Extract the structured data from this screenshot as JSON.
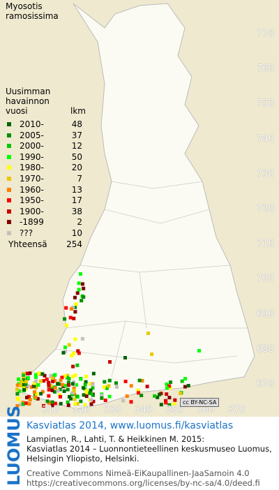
{
  "species": "Myosotis ramosissima",
  "legend": {
    "heading": [
      "Uusimman",
      "havainnon",
      "vuosi"
    ],
    "count_heading": "lkm",
    "rows": [
      {
        "label": "2010-",
        "count": 48,
        "color": "#006400"
      },
      {
        "label": "2005-",
        "count": 37,
        "color": "#009000"
      },
      {
        "label": "2000-",
        "count": 12,
        "color": "#00c800"
      },
      {
        "label": "1990-",
        "count": 50,
        "color": "#00ff00"
      },
      {
        "label": "1980-",
        "count": 20,
        "color": "#ffff00"
      },
      {
        "label": "1970-",
        "count": 7,
        "color": "#e8c800"
      },
      {
        "label": "1960-",
        "count": 13,
        "color": "#ff8000"
      },
      {
        "label": "1950-",
        "count": 17,
        "color": "#ff0000"
      },
      {
        "label": "1900-",
        "count": 38,
        "color": "#c80000"
      },
      {
        "label": "-1899",
        "count": 2,
        "color": "#800000"
      },
      {
        "label": "???",
        "count": 10,
        "color": "#c0c0c0"
      }
    ],
    "total_label": "Yhteensä",
    "total": 254
  },
  "northing_labels": [
    770,
    760,
    750,
    740,
    730,
    720,
    710,
    700,
    690,
    680,
    670
  ],
  "easting_labels": [
    310,
    320,
    330,
    340,
    350,
    360,
    370
  ],
  "license_badge": [
    "cc",
    "BY-NC-SA"
  ],
  "logo": "LUOMUS",
  "footer": {
    "link": "Kasviatlas 2014, www.luomus.fi/kasviatlas",
    "citation": [
      "Lampinen, R., Lahti, T. & Heikkinen M. 2015:",
      "Kasviatlas 2014 – Luonnontieteellinen keskusmuseo Luomus,",
      "Helsingin Yliopisto, Helsinki."
    ],
    "license": [
      "Creative Commons Nimeä-EiKaupallinen-JaaSamoin 4.0",
      "https://creativecommons.org/licenses/by-nc-sa/4.0/deed.fi"
    ]
  }
}
